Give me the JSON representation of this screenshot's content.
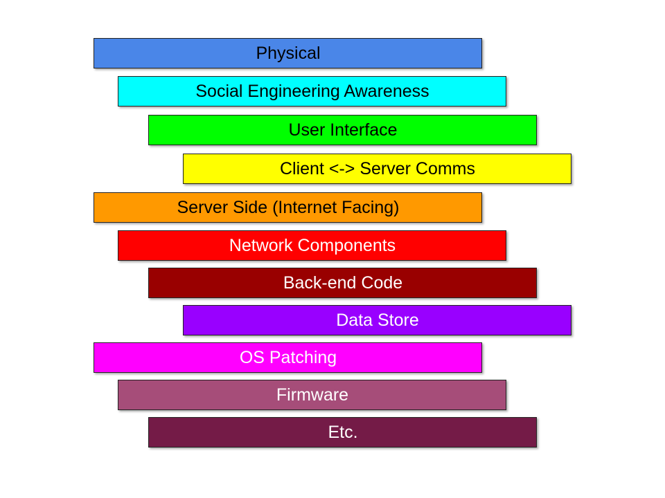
{
  "layers": [
    {
      "label": "Physical",
      "fill": "#4a86e8",
      "text_color": "#000000"
    },
    {
      "label": "Social Engineering Awareness",
      "fill": "#00ffff",
      "text_color": "#000000"
    },
    {
      "label": "User Interface",
      "fill": "#00ff00",
      "text_color": "#000000"
    },
    {
      "label": "Client <-> Server Comms",
      "fill": "#ffff00",
      "text_color": "#000000"
    },
    {
      "label": "Server Side (Internet Facing)",
      "fill": "#ff9900",
      "text_color": "#000000"
    },
    {
      "label": "Network Components",
      "fill": "#ff0000",
      "text_color": "#ffffff"
    },
    {
      "label": "Back-end Code",
      "fill": "#990000",
      "text_color": "#ffffff"
    },
    {
      "label": "Data Store",
      "fill": "#9900ff",
      "text_color": "#ffffff"
    },
    {
      "label": "OS Patching",
      "fill": "#ff00ff",
      "text_color": "#ffffff"
    },
    {
      "label": "Firmware",
      "fill": "#a64d79",
      "text_color": "#ffffff"
    },
    {
      "label": "Etc.",
      "fill": "#741b47",
      "text_color": "#ffffff"
    }
  ]
}
